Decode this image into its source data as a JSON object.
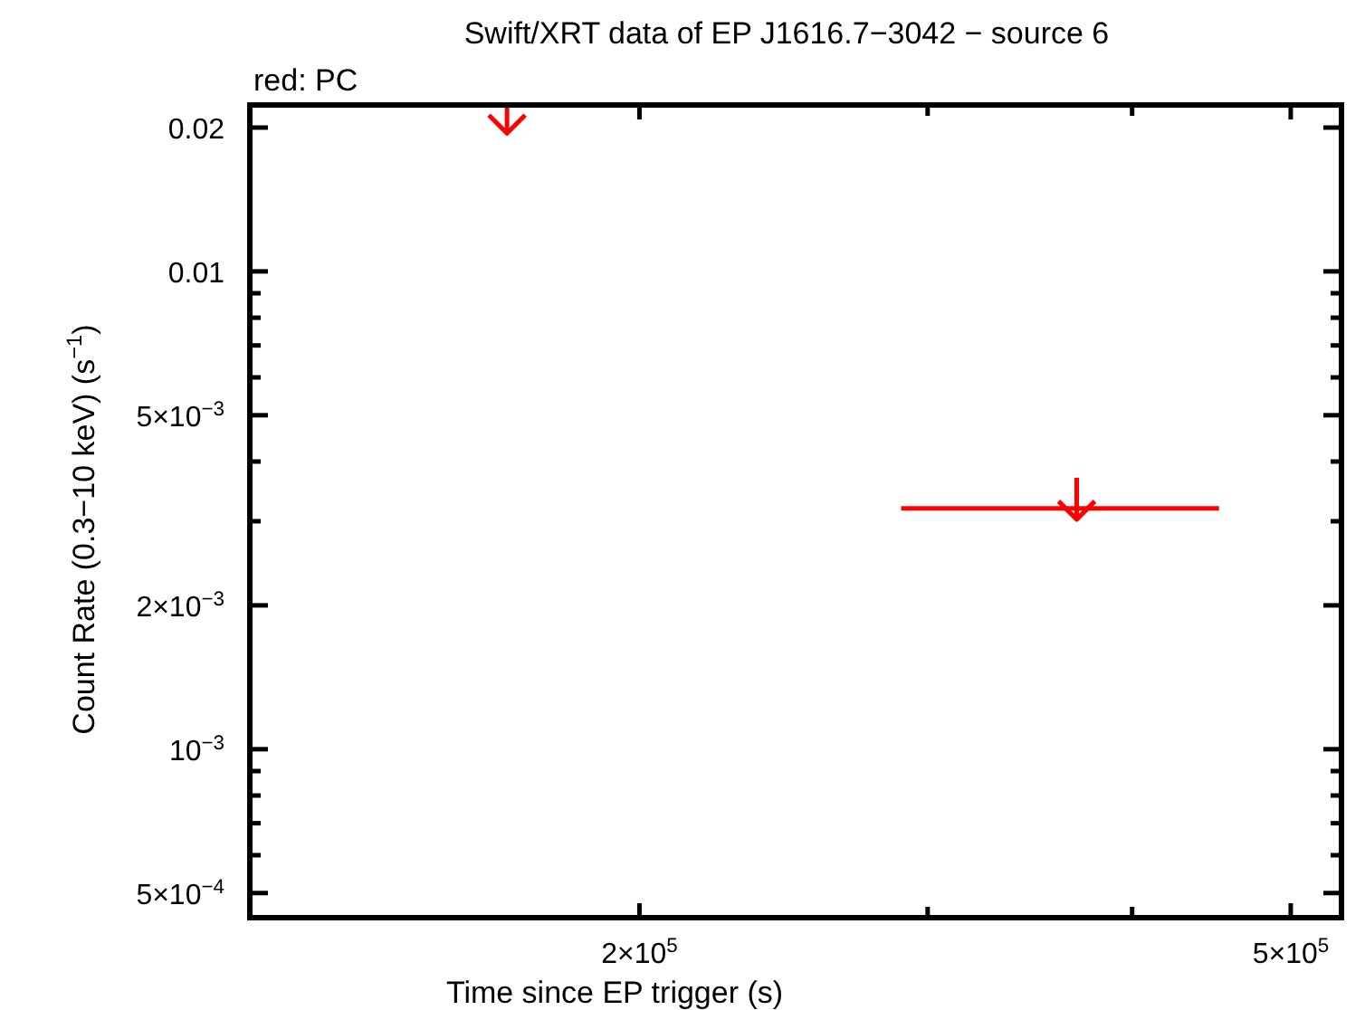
{
  "chart_data": {
    "type": "scatter",
    "title": "Swift/XRT data of EP J1616.7−3042 − source 6",
    "xlabel": "Time since EP trigger (s)",
    "ylabel": "Count Rate (0.3−10 keV) (s$^{−1}$)",
    "annotations": [
      "red: PC"
    ],
    "log": "xy",
    "xlim": [
      115600,
      537000
    ],
    "ylim": [
      0.000444,
      0.0223
    ],
    "xticks": [
      {
        "value": 200000,
        "label": "2×10$^{5}$"
      },
      {
        "value": 300000,
        "label": null
      },
      {
        "value": 400000,
        "label": null
      },
      {
        "value": 500000,
        "label": "5×10$^{5}$"
      }
    ],
    "yticks": [
      {
        "value": 0.0005,
        "label": "5×10$^{−4}$"
      },
      {
        "value": 0.0006,
        "label": null
      },
      {
        "value": 0.0007,
        "label": null
      },
      {
        "value": 0.0008,
        "label": null
      },
      {
        "value": 0.0009,
        "label": null
      },
      {
        "value": 0.001,
        "label": "10$^{−3}$"
      },
      {
        "value": 0.002,
        "label": "2×10$^{−3}$"
      },
      {
        "value": 0.003,
        "label": null
      },
      {
        "value": 0.004,
        "label": null
      },
      {
        "value": 0.005,
        "label": "5×10$^{−3}$"
      },
      {
        "value": 0.006,
        "label": null
      },
      {
        "value": 0.007,
        "label": null
      },
      {
        "value": 0.008,
        "label": null
      },
      {
        "value": 0.009,
        "label": null
      },
      {
        "value": 0.01,
        "label": "0.01"
      },
      {
        "value": 0.02,
        "label": "0.02"
      }
    ],
    "series": [
      {
        "color": "#ff0000",
        "x": [
          166000,
          370000
        ],
        "values": [
          0.0205,
          0.00319
        ],
        "xerrors": [
          null,
          [
            289000,
            452000
          ]
        ],
        "errors": [
          [
            0.0195,
            0.0223
          ],
          [
            0.00303,
            0.0037
          ]
        ]
      }
    ]
  }
}
